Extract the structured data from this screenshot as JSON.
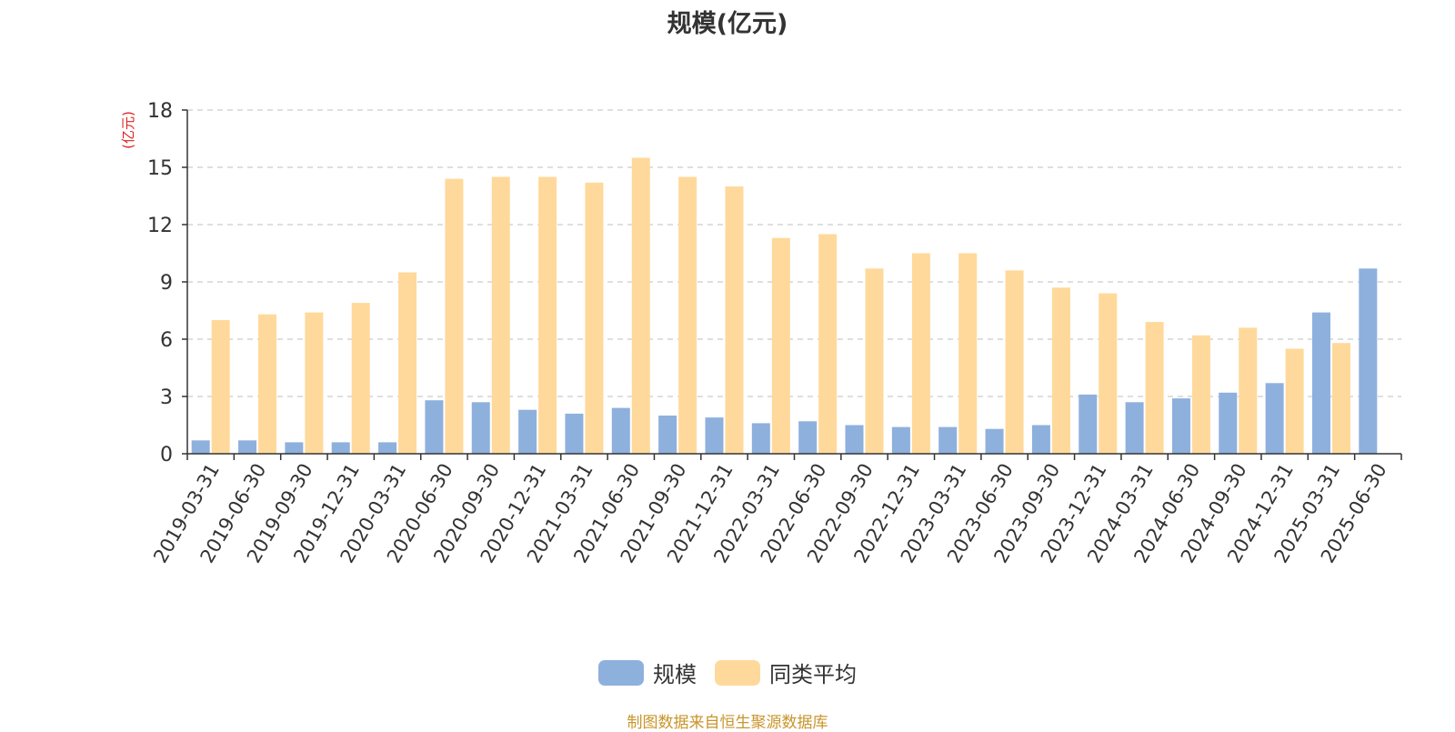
{
  "title": "规模(亿元)",
  "source_note": "制图数据来自恒生聚源数据库",
  "colors": {
    "scale": "#8EB0DD",
    "avg": "#FFD99B",
    "axis_unit": "#E02020",
    "source_note": "#C8952B",
    "grid": "#CCCCCC",
    "axis": "#333333"
  },
  "chart_data": {
    "type": "bar",
    "title": "规模(亿元)",
    "ylabel": "(亿元)",
    "xlabel": "",
    "ylim": [
      0,
      18
    ],
    "yticks": [
      0,
      3,
      6,
      9,
      12,
      15,
      18
    ],
    "grid": true,
    "legend_position": "bottom",
    "categories": [
      "2019-03-31",
      "2019-06-30",
      "2019-09-30",
      "2019-12-31",
      "2020-03-31",
      "2020-06-30",
      "2020-09-30",
      "2020-12-31",
      "2021-03-31",
      "2021-06-30",
      "2021-09-30",
      "2021-12-31",
      "2022-03-31",
      "2022-06-30",
      "2022-09-30",
      "2022-12-31",
      "2023-03-31",
      "2023-06-30",
      "2023-09-30",
      "2023-12-31",
      "2024-03-31",
      "2024-06-30",
      "2024-09-30",
      "2024-12-31",
      "2025-03-31",
      "2025-06-30"
    ],
    "series": [
      {
        "name": "规模",
        "values": [
          0.7,
          0.7,
          0.6,
          0.6,
          0.6,
          2.8,
          2.7,
          2.3,
          2.1,
          2.4,
          2.0,
          1.9,
          1.6,
          1.7,
          1.5,
          1.4,
          1.4,
          1.3,
          1.5,
          3.1,
          2.7,
          2.9,
          3.2,
          3.7,
          7.4,
          9.7
        ]
      },
      {
        "name": "同类平均",
        "values": [
          7.0,
          7.3,
          7.4,
          7.9,
          9.5,
          14.4,
          14.5,
          14.5,
          14.2,
          15.5,
          14.5,
          14.0,
          11.3,
          11.5,
          9.7,
          10.5,
          10.5,
          9.6,
          8.7,
          8.4,
          6.9,
          6.2,
          6.6,
          5.5,
          5.8,
          null
        ]
      }
    ]
  },
  "legend": [
    {
      "label": "规模"
    },
    {
      "label": "同类平均"
    }
  ]
}
